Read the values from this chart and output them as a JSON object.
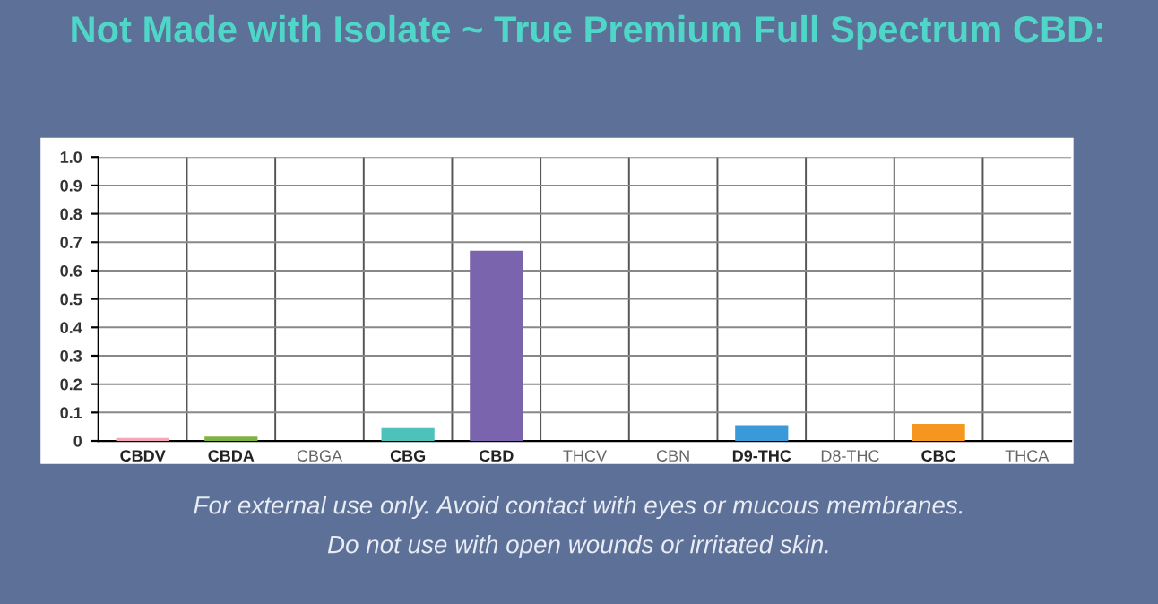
{
  "chart_data": {
    "type": "bar",
    "title": "Not Made with Isolate ~ True Premium Full Spectrum CBD:",
    "categories": [
      "CBDV",
      "CBDA",
      "CBGA",
      "CBG",
      "CBD",
      "THCV",
      "CBN",
      "D9-THC",
      "D8-THC",
      "CBC",
      "THCA"
    ],
    "values": [
      0.01,
      0.015,
      0,
      0.045,
      0.67,
      0,
      0,
      0.055,
      0,
      0.06,
      0
    ],
    "colors": [
      "#f4a6b8",
      "#7cb342",
      "#cccccc",
      "#4ec1bb",
      "#7b64ae",
      "#cccccc",
      "#cccccc",
      "#3a9ad9",
      "#cccccc",
      "#f5961f",
      "#cccccc"
    ],
    "ylim": [
      0,
      1
    ],
    "yticks": [
      0,
      0.1,
      0.2,
      0.3,
      0.4,
      0.5,
      0.6,
      0.7,
      0.8,
      0.9,
      {
        "value": 1,
        "label": "1.0"
      }
    ],
    "grid": true,
    "annotations": [
      "For external use only. Avoid contact with eyes or mucous membranes.",
      "Do not use with open wounds or irritated skin."
    ]
  }
}
